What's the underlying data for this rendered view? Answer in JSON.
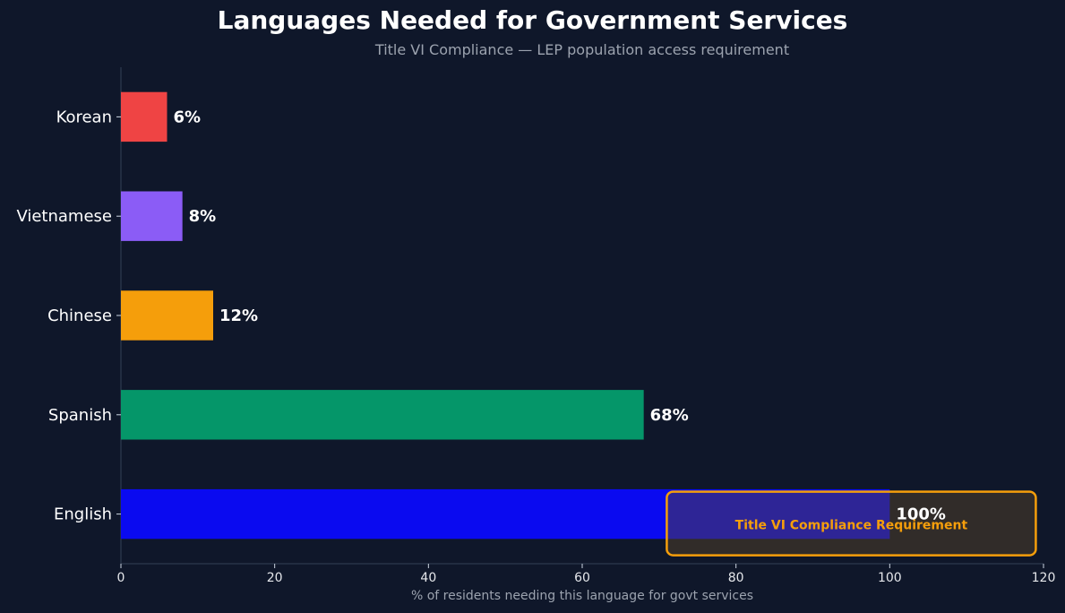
{
  "chart_data": {
    "type": "bar",
    "orientation": "horizontal",
    "title": "Languages Needed for Government Services",
    "subtitle": "Title VI Compliance — LEP population access requirement",
    "xlabel": "% of residents needing this language for govt services",
    "ylabel": "",
    "xlim": [
      0,
      120
    ],
    "xticks": [
      "0",
      "20",
      "40",
      "60",
      "80",
      "100",
      "120"
    ],
    "categories": [
      "English",
      "Spanish",
      "Chinese",
      "Vietnamese",
      "Korean"
    ],
    "values": [
      100,
      68,
      12,
      8,
      6
    ],
    "data_labels": [
      "100%",
      "68%",
      "12%",
      "8%",
      "6%"
    ],
    "colors": [
      "#0a0af0",
      "#059669",
      "#f59e0b",
      "#8b5cf6",
      "#ef4444"
    ],
    "annotation": {
      "text": "Title VI Compliance Requirement",
      "color": "#f59e0b",
      "x_range": [
        71,
        119
      ]
    },
    "grid": false
  }
}
